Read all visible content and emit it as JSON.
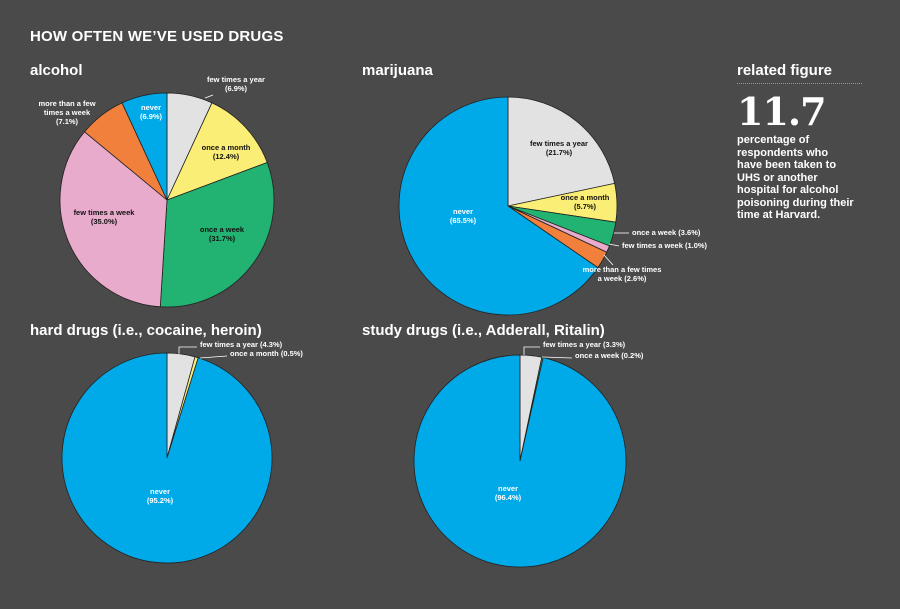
{
  "title": "HOW OFTEN WE’VE USED DRUGS",
  "colors": {
    "background": "#4a4a4a",
    "never": "#00a9e8",
    "few_times_a_year": "#e2e2e2",
    "once_a_month": "#fbee76",
    "once_a_week": "#22b272",
    "few_times_a_week": "#e8abcc",
    "more_than_a_few_times_a_week": "#f0803c"
  },
  "related": {
    "heading": "related figure",
    "number": "11.7",
    "text": "percentage of respondents who have been taken to UHS or another hospital for alcohol poisoning during their time at Harvard."
  },
  "chart_data": [
    {
      "type": "pie",
      "title": "alcohol",
      "slices": [
        {
          "label": "few times a year",
          "value": 6.9,
          "display": "(6.9%)"
        },
        {
          "label": "once a month",
          "value": 12.4,
          "display": "(12.4%)"
        },
        {
          "label": "once a week",
          "value": 31.7,
          "display": "(31.7%)"
        },
        {
          "label": "few times a week",
          "value": 35.0,
          "display": "(35.0%)"
        },
        {
          "label": "more than a few times a week",
          "value": 7.1,
          "display": "(7.1%)"
        },
        {
          "label": "never",
          "value": 6.9,
          "display": "(6.9%)"
        }
      ]
    },
    {
      "type": "pie",
      "title": "marijuana",
      "slices": [
        {
          "label": "few times a year",
          "value": 21.7,
          "display": "(21.7%)"
        },
        {
          "label": "once a month",
          "value": 5.7,
          "display": "(5.7%)"
        },
        {
          "label": "once a week",
          "value": 3.6,
          "display": "(3.6%)"
        },
        {
          "label": "few times a week",
          "value": 1.0,
          "display": "(1.0%)"
        },
        {
          "label": "more than a few times a week",
          "value": 2.6,
          "display": "(2.6%)"
        },
        {
          "label": "never",
          "value": 65.5,
          "display": "(65.5%)"
        }
      ]
    },
    {
      "type": "pie",
      "title": "hard drugs (i.e., cocaine, heroin)",
      "slices": [
        {
          "label": "few times a year",
          "value": 4.3,
          "display": "(4.3%)"
        },
        {
          "label": "once a month",
          "value": 0.5,
          "display": "(0.5%)"
        },
        {
          "label": "never",
          "value": 95.2,
          "display": "(95.2%)"
        }
      ]
    },
    {
      "type": "pie",
      "title": "study drugs (i.e., Adderall, Ritalin)",
      "slices": [
        {
          "label": "few times a year",
          "value": 3.3,
          "display": "(3.3%)"
        },
        {
          "label": "once a week",
          "value": 0.2,
          "display": "(0.2%)"
        },
        {
          "label": "never",
          "value": 96.4,
          "display": "(96.4%)"
        }
      ]
    }
  ]
}
